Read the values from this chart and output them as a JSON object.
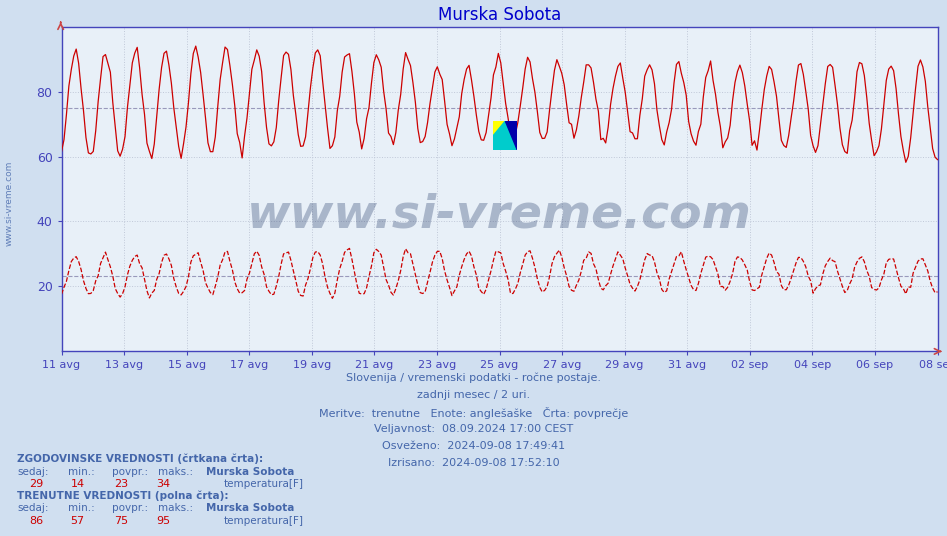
{
  "title": "Murska Sobota",
  "title_color": "#0000cc",
  "bg_color": "#d0dff0",
  "plot_bg_color": "#e8f0f8",
  "grid_color": "#c0c8d8",
  "axis_color": "#4444bb",
  "text_color": "#4466aa",
  "xlim_days": 29,
  "ylim": [
    0,
    100
  ],
  "avg_line_historical": 23,
  "avg_line_current": 75,
  "xtick_labels": [
    "11 avg",
    "13 avg",
    "15 avg",
    "17 avg",
    "19 avg",
    "21 avg",
    "23 avg",
    "25 avg",
    "27 avg",
    "29 avg",
    "31 avg",
    "02 sep",
    "04 sep",
    "06 sep",
    "08 sep"
  ],
  "info_lines": [
    "Slovenija / vremenski podatki - ročne postaje.",
    "zadnji mesec / 2 uri.",
    "Meritve:  trenutne   Enote: anglešaške   Črta: povprečje",
    "Veljavnost:  08.09.2024 17:00 CEST",
    "Osveženo:  2024-09-08 17:49:41",
    "Izrisano:  2024-09-08 17:52:10"
  ],
  "historical_stats": {
    "sedaj": 29,
    "min": 14,
    "povpr": 23,
    "maks": 34
  },
  "current_stats": {
    "sedaj": 86,
    "min": 57,
    "povpr": 75,
    "maks": 95
  },
  "watermark_text": "www.si-vreme.com",
  "watermark_color": "#1a3060",
  "watermark_alpha": 0.3,
  "line_color_solid": "#cc0000",
  "line_color_dashed": "#cc0000",
  "n_points": 360
}
